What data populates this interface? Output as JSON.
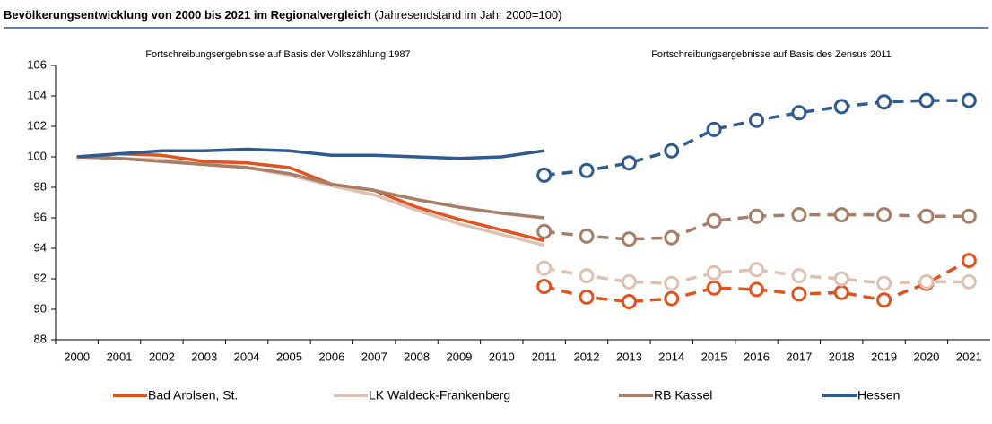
{
  "chart_data": {
    "type": "line",
    "title": "Bevölkerungsentwicklung von 2000 bis 2021 im Regionalvergleich",
    "subtitle": "(Jahresendstand im Jahr 2000=100)",
    "annotations": [
      "Fortschreibungsergebnisse auf Basis der Volkszählung 1987",
      "Fortschreibungsergebnisse auf Basis des Zensus 2011"
    ],
    "categories": [
      "2000",
      "2001",
      "2002",
      "2003",
      "2004",
      "2005",
      "2006",
      "2007",
      "2008",
      "2009",
      "2010",
      "2011",
      "2012",
      "2013",
      "2014",
      "2015",
      "2016",
      "2017",
      "2018",
      "2019",
      "2020",
      "2021"
    ],
    "series": [
      {
        "name": "Bad Arolsen, St.",
        "color": "#e0531f",
        "values": [
          100,
          100.2,
          100.1,
          99.7,
          99.6,
          99.3,
          98.2,
          97.8,
          96.7,
          95.9,
          95.2,
          94.5,
          null,
          null,
          null,
          null,
          null,
          null,
          null,
          null,
          null,
          null
        ],
        "zensus_values": [
          null,
          null,
          null,
          null,
          null,
          null,
          null,
          null,
          null,
          null,
          null,
          91.5,
          90.8,
          90.5,
          90.7,
          91.4,
          91.3,
          91.0,
          91.1,
          90.6,
          91.7,
          93.2
        ]
      },
      {
        "name": "LK Waldeck-Frankenberg",
        "color": "#dfc1b3",
        "values": [
          100,
          99.9,
          99.8,
          99.5,
          99.3,
          98.8,
          98.1,
          97.5,
          96.5,
          95.6,
          94.9,
          94.2,
          null,
          null,
          null,
          null,
          null,
          null,
          null,
          null,
          null,
          null
        ],
        "zensus_values": [
          null,
          null,
          null,
          null,
          null,
          null,
          null,
          null,
          null,
          null,
          null,
          92.7,
          92.2,
          91.8,
          91.7,
          92.4,
          92.6,
          92.2,
          92.0,
          91.7,
          91.8,
          91.8
        ]
      },
      {
        "name": "RB Kassel",
        "color": "#a67d66",
        "values": [
          100,
          99.9,
          99.7,
          99.5,
          99.3,
          98.9,
          98.2,
          97.8,
          97.2,
          96.7,
          96.3,
          96.0,
          null,
          null,
          null,
          null,
          null,
          null,
          null,
          null,
          null,
          null
        ],
        "zensus_values": [
          null,
          null,
          null,
          null,
          null,
          null,
          null,
          null,
          null,
          null,
          null,
          95.1,
          94.8,
          94.6,
          94.7,
          95.8,
          96.1,
          96.2,
          96.2,
          96.2,
          96.1,
          96.1
        ]
      },
      {
        "name": "Hessen",
        "color": "#2f5a8e",
        "values": [
          100,
          100.2,
          100.4,
          100.4,
          100.5,
          100.4,
          100.1,
          100.1,
          100.0,
          99.9,
          100.0,
          100.4,
          null,
          null,
          null,
          null,
          null,
          null,
          null,
          null,
          null,
          null
        ],
        "zensus_values": [
          null,
          null,
          null,
          null,
          null,
          null,
          null,
          null,
          null,
          null,
          null,
          98.8,
          99.1,
          99.6,
          100.4,
          101.8,
          102.4,
          102.9,
          103.3,
          103.6,
          103.7,
          103.7
        ]
      }
    ],
    "ylim": [
      88,
      106
    ],
    "yticks": [
      88,
      90,
      92,
      94,
      96,
      98,
      100,
      102,
      104,
      106
    ],
    "grid": false,
    "legend": "bottom"
  }
}
